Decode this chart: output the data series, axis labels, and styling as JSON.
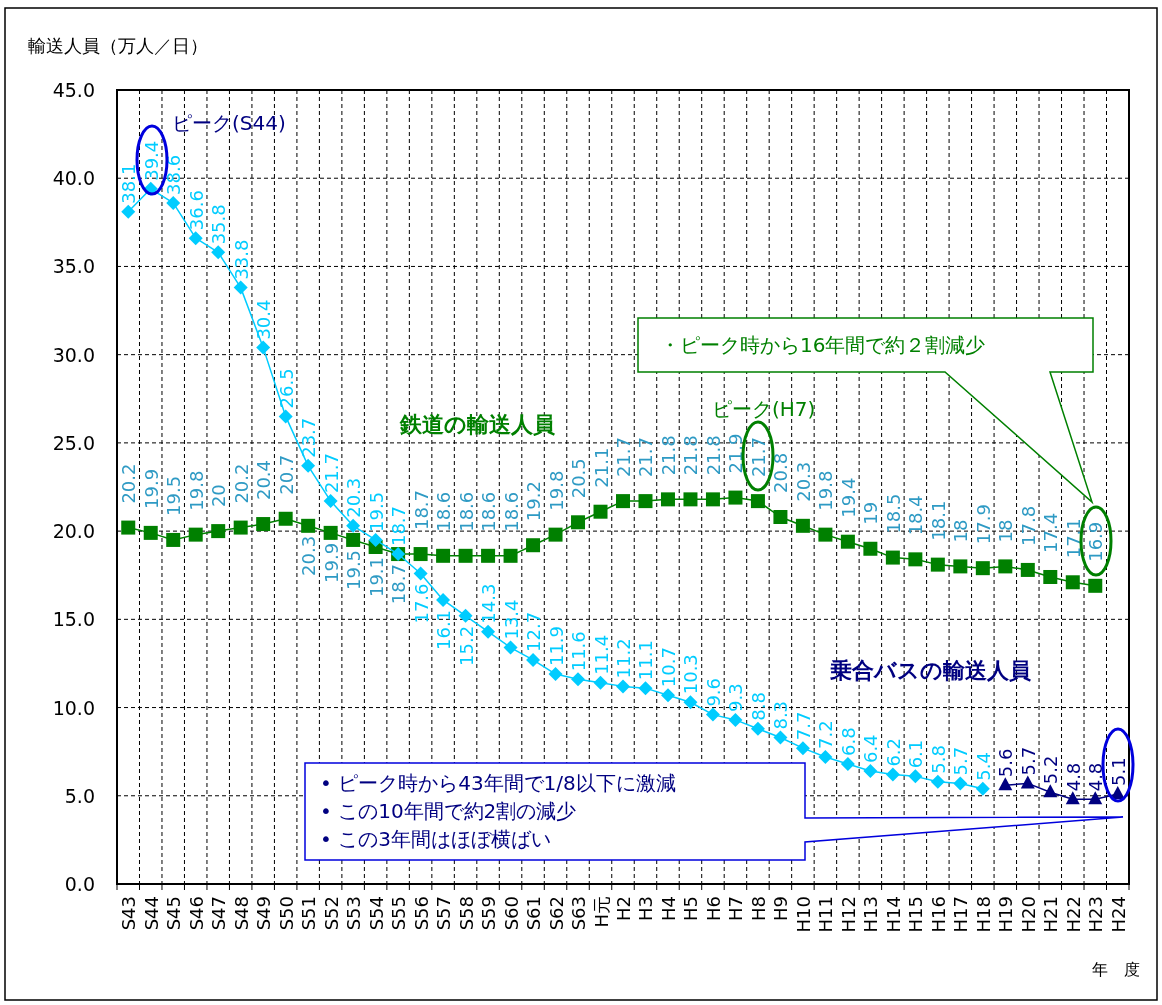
{
  "chart_data": {
    "type": "line",
    "ylabel": "輸送人員（万人／日）",
    "xlabel": "年　度",
    "categories": [
      "S43",
      "S44",
      "S45",
      "S46",
      "S47",
      "S48",
      "S49",
      "S50",
      "S51",
      "S52",
      "S53",
      "S54",
      "S55",
      "S56",
      "S57",
      "S58",
      "S59",
      "S60",
      "S61",
      "S62",
      "S63",
      "H元",
      "H2",
      "H3",
      "H4",
      "H5",
      "H6",
      "H7",
      "H8",
      "H9",
      "H10",
      "H11",
      "H12",
      "H13",
      "H14",
      "H15",
      "H16",
      "H17",
      "H18",
      "H19",
      "H20",
      "H21",
      "H22",
      "H23",
      "H24"
    ],
    "series": [
      {
        "name": "鉄道の輸送人員",
        "color": "#008000",
        "marker": "square",
        "values": [
          20.2,
          19.9,
          19.5,
          19.8,
          20,
          20.2,
          20.4,
          20.7,
          20.3,
          19.9,
          19.5,
          19.1,
          18.7,
          18.7,
          18.6,
          18.6,
          18.6,
          18.6,
          19.2,
          19.8,
          20.5,
          21.1,
          21.7,
          21.7,
          21.8,
          21.8,
          21.8,
          21.9,
          21.7,
          20.8,
          20.3,
          19.8,
          19.4,
          19,
          18.5,
          18.4,
          18.1,
          18,
          17.9,
          18.0,
          17.8,
          17.4,
          17.1,
          16.9,
          null
        ]
      },
      {
        "color": "#00ccff",
        "marker": "diamond",
        "values": [
          38.1,
          39.4,
          38.6,
          36.6,
          35.8,
          33.8,
          30.4,
          26.5,
          23.7,
          21.7,
          20.3,
          19.5,
          18.7,
          17.6,
          16.1,
          15.2,
          14.3,
          13.4,
          12.7,
          11.9,
          11.6,
          11.4,
          11.2,
          11.1,
          10.7,
          10.3,
          9.6,
          9.3,
          8.8,
          8.3,
          7.7,
          7.2,
          6.8,
          6.4,
          6.2,
          6.1,
          5.8,
          5.7,
          5.4,
          null,
          null,
          null,
          null,
          null,
          null
        ]
      },
      {
        "name": "乗合バスの輸送人員",
        "color": "#000080",
        "marker": "triangle",
        "values": [
          null,
          null,
          null,
          null,
          null,
          null,
          null,
          null,
          null,
          null,
          null,
          null,
          null,
          null,
          null,
          null,
          null,
          null,
          null,
          null,
          null,
          null,
          null,
          null,
          null,
          null,
          null,
          null,
          null,
          null,
          null,
          null,
          null,
          null,
          null,
          null,
          null,
          null,
          null,
          5.6,
          5.7,
          5.2,
          4.8,
          4.8,
          5.1
        ]
      }
    ],
    "ylim": [
      0,
      45
    ],
    "yticks": [
      {
        "value": 0,
        "label": "0.0"
      },
      {
        "value": 5,
        "label": "5.0"
      },
      {
        "value": 10,
        "label": "10.0"
      },
      {
        "value": 15,
        "label": "15.0"
      },
      {
        "value": 20,
        "label": "20.0"
      },
      {
        "value": 25,
        "label": "25.0"
      },
      {
        "value": 30,
        "label": "30.0"
      },
      {
        "value": 35,
        "label": "35.0"
      },
      {
        "value": 40,
        "label": "40.0"
      },
      {
        "value": 45,
        "label": "45.0"
      }
    ],
    "grid": true,
    "legend": false,
    "line_style": "solid",
    "data_labels": true,
    "annotations": [
      "ピーク(S44)",
      "ピーク(H7)",
      "・ピーク時から16年間で約２割減少",
      "• ピーク時から43年間で1/8以下に激減",
      "• この10年間で約2割の減少",
      "• この3年間はほぼ横ばい"
    ]
  }
}
